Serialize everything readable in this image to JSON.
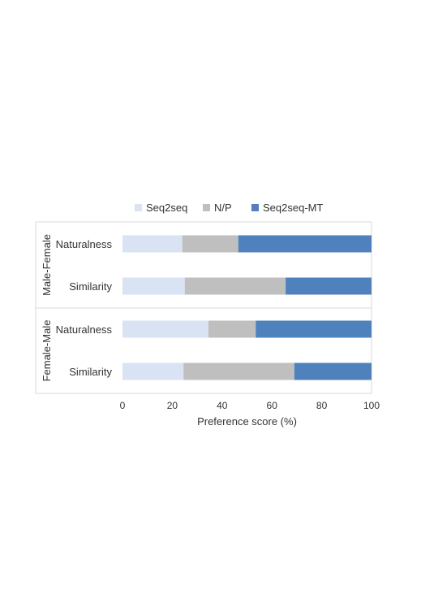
{
  "chart_data": {
    "type": "bar",
    "orientation": "horizontal",
    "stacked": true,
    "title": "",
    "xlabel": "Preference score (%)",
    "ylabel": "",
    "xlim": [
      0,
      100
    ],
    "xticks": [
      0,
      20,
      40,
      60,
      80,
      100
    ],
    "grid": false,
    "legend_position": "top",
    "groups": [
      {
        "name": "Male-Female",
        "categories": [
          "Naturalness",
          "Similarity"
        ]
      },
      {
        "name": "Female-Male",
        "categories": [
          "Naturalness",
          "Similarity"
        ]
      }
    ],
    "series": [
      {
        "name": "Seq2seq",
        "color": "#dae3f3",
        "values": [
          24,
          25,
          34.5,
          24.5
        ]
      },
      {
        "name": "N/P",
        "color": "#bfbfbf",
        "values": [
          22.5,
          40.5,
          19,
          44.5
        ]
      },
      {
        "name": "Seq2seq-MT",
        "color": "#4f81bd",
        "values": [
          53.5,
          34.5,
          46.5,
          31
        ]
      }
    ]
  }
}
